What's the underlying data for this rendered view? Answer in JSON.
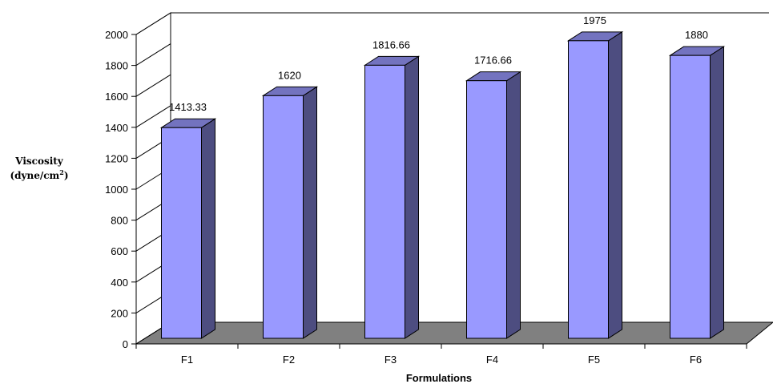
{
  "chart_data": {
    "type": "bar",
    "style": "3d-column",
    "categories": [
      "F1",
      "F2",
      "F3",
      "F4",
      "F5",
      "F6"
    ],
    "values": [
      1413.33,
      1620,
      1816.66,
      1716.66,
      1975,
      1880
    ],
    "data_labels": [
      "1413.33",
      "1620",
      "1816.66",
      "1716.66",
      "1975",
      "1880"
    ],
    "xlabel": "Formulations",
    "ylabel_line1": "Viscosity",
    "ylabel_line2_base": "(dyne/cm",
    "ylabel_line2_sup": "2",
    "ylabel_line2_end": ")",
    "ylim": [
      0,
      2000
    ],
    "yticks": [
      0,
      200,
      400,
      600,
      800,
      1000,
      1200,
      1400,
      1600,
      1800,
      2000
    ],
    "grid": false,
    "legend": "none",
    "colors": {
      "bar_front": "#9999ff",
      "bar_side": "#4d4d80",
      "bar_top": "#7373bf",
      "floor": "#808080",
      "wall": "#ffffff"
    }
  }
}
